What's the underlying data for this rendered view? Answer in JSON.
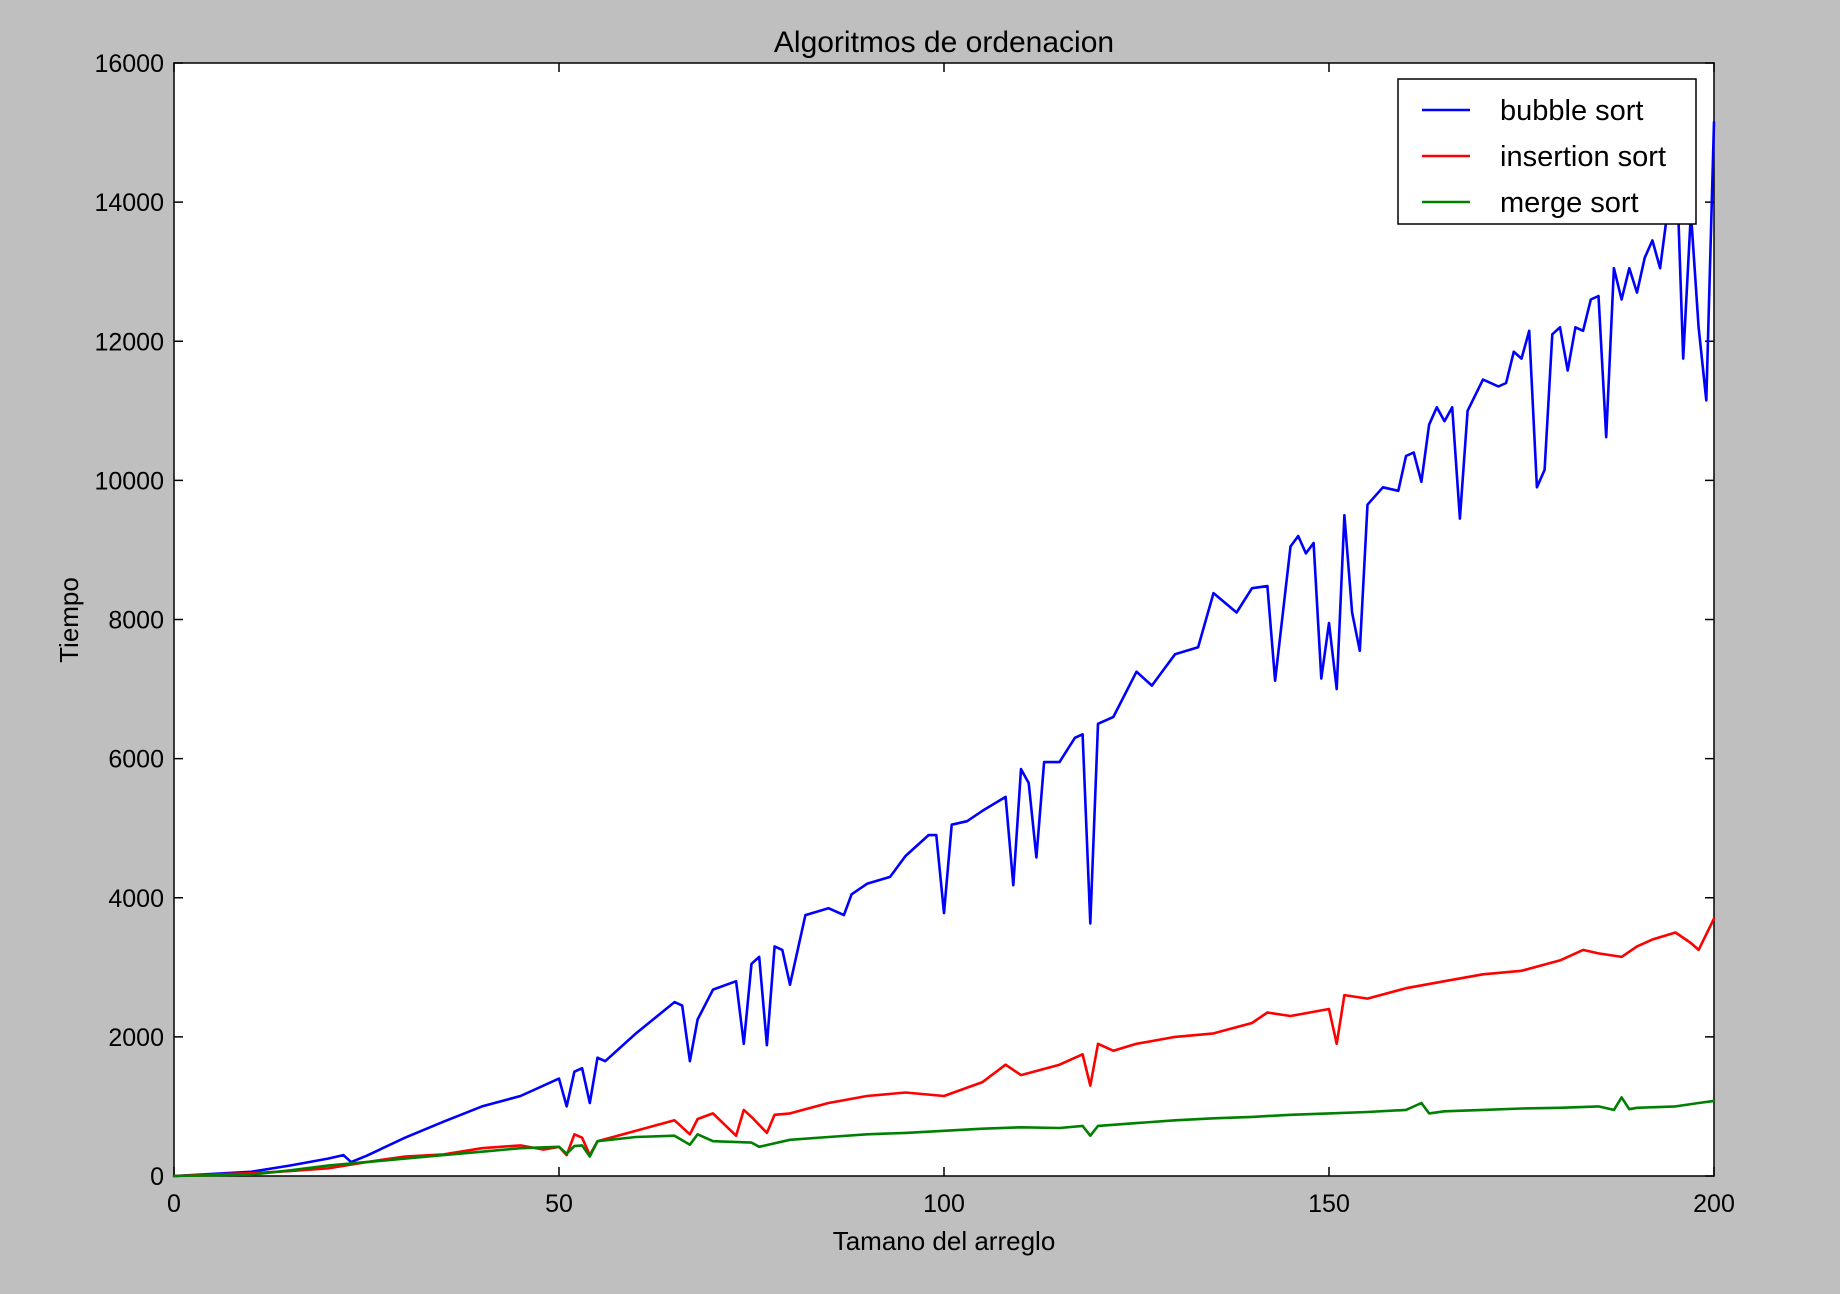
{
  "chart_data": {
    "type": "line",
    "title": "Algoritmos de ordenacion",
    "xlabel": "Tamano del arreglo",
    "ylabel": "Tiempo",
    "xlim": [
      0,
      200
    ],
    "ylim": [
      0,
      16000
    ],
    "xticks": [
      0,
      50,
      100,
      150,
      200
    ],
    "yticks": [
      0,
      2000,
      4000,
      6000,
      8000,
      10000,
      12000,
      14000,
      16000
    ],
    "grid": false,
    "legend_position": "top-right",
    "series": [
      {
        "name": "bubble sort",
        "color": "#0000ff",
        "x": [
          0,
          5,
          10,
          15,
          20,
          22,
          23,
          25,
          30,
          35,
          40,
          45,
          50,
          51,
          52,
          53,
          54,
          55,
          56,
          60,
          65,
          66,
          67,
          68,
          70,
          73,
          74,
          75,
          76,
          77,
          78,
          79,
          80,
          82,
          85,
          87,
          88,
          90,
          93,
          95,
          98,
          99,
          100,
          101,
          103,
          105,
          108,
          109,
          110,
          111,
          112,
          113,
          115,
          117,
          118,
          119,
          120,
          122,
          125,
          127,
          128,
          130,
          133,
          135,
          138,
          140,
          142,
          143,
          145,
          146,
          147,
          148,
          149,
          150,
          151,
          152,
          153,
          154,
          155,
          157,
          159,
          160,
          161,
          162,
          163,
          164,
          165,
          166,
          167,
          168,
          170,
          172,
          173,
          174,
          175,
          176,
          177,
          178,
          179,
          180,
          181,
          182,
          183,
          184,
          185,
          186,
          187,
          188,
          189,
          190,
          191,
          192,
          193,
          194,
          195,
          196,
          197,
          198,
          199,
          200
        ],
        "values": [
          0,
          30,
          60,
          150,
          250,
          300,
          200,
          290,
          550,
          780,
          1000,
          1150,
          1400,
          1000,
          1500,
          1550,
          1050,
          1700,
          1650,
          2050,
          2500,
          2450,
          1650,
          2250,
          2680,
          2800,
          1900,
          3050,
          3150,
          1880,
          3300,
          3250,
          2750,
          3750,
          3850,
          3750,
          4050,
          4200,
          4300,
          4600,
          4900,
          4900,
          3780,
          5050,
          5100,
          5250,
          5450,
          4180,
          5850,
          5650,
          4580,
          5950,
          5950,
          6300,
          6350,
          3630,
          6500,
          6600,
          7250,
          7050,
          7200,
          7500,
          7600,
          8380,
          8100,
          8450,
          8480,
          7120,
          9050,
          9200,
          8950,
          9100,
          7150,
          7950,
          7000,
          9500,
          8100,
          7550,
          9650,
          9900,
          9850,
          10350,
          10400,
          9980,
          10800,
          11050,
          10850,
          11050,
          9450,
          11000,
          11450,
          11350,
          11400,
          11850,
          11750,
          12150,
          9900,
          10150,
          12100,
          12200,
          11580,
          12200,
          12150,
          12600,
          12650,
          10620,
          13050,
          12600,
          13050,
          12700,
          13200,
          13450,
          13050,
          13900,
          15000,
          11750,
          13850,
          12200,
          11150,
          15150
        ]
      },
      {
        "name": "insertion sort",
        "color": "#ff0000",
        "x": [
          0,
          5,
          10,
          15,
          20,
          25,
          30,
          35,
          40,
          45,
          48,
          50,
          51,
          52,
          53,
          54,
          55,
          60,
          65,
          67,
          68,
          70,
          73,
          74,
          75,
          77,
          78,
          80,
          85,
          90,
          95,
          100,
          105,
          108,
          110,
          115,
          118,
          119,
          120,
          122,
          125,
          130,
          135,
          140,
          142,
          145,
          150,
          151,
          152,
          155,
          160,
          165,
          170,
          175,
          180,
          183,
          185,
          188,
          190,
          192,
          195,
          197,
          198,
          200
        ],
        "values": [
          0,
          20,
          40,
          70,
          110,
          200,
          280,
          310,
          400,
          440,
          380,
          420,
          300,
          600,
          550,
          300,
          500,
          650,
          800,
          600,
          820,
          900,
          580,
          950,
          850,
          620,
          880,
          900,
          1050,
          1150,
          1200,
          1150,
          1350,
          1600,
          1450,
          1600,
          1750,
          1300,
          1900,
          1800,
          1900,
          2000,
          2050,
          2200,
          2350,
          2300,
          2400,
          1900,
          2600,
          2550,
          2700,
          2800,
          2900,
          2950,
          3100,
          3250,
          3200,
          3150,
          3300,
          3400,
          3500,
          3350,
          3250,
          3700
        ]
      },
      {
        "name": "merge sort",
        "color": "#008000",
        "x": [
          0,
          10,
          15,
          20,
          25,
          30,
          35,
          40,
          45,
          50,
          51,
          52,
          53,
          54,
          55,
          60,
          65,
          67,
          68,
          70,
          75,
          76,
          80,
          85,
          90,
          95,
          100,
          105,
          110,
          115,
          118,
          119,
          120,
          125,
          130,
          135,
          140,
          145,
          150,
          155,
          160,
          162,
          163,
          165,
          170,
          175,
          180,
          185,
          187,
          188,
          189,
          190,
          195,
          198,
          200
        ],
        "values": [
          0,
          20,
          80,
          150,
          200,
          250,
          300,
          350,
          400,
          420,
          320,
          430,
          440,
          280,
          500,
          560,
          580,
          450,
          600,
          500,
          480,
          420,
          520,
          560,
          600,
          620,
          650,
          680,
          700,
          690,
          720,
          580,
          720,
          760,
          800,
          830,
          850,
          880,
          900,
          920,
          950,
          1050,
          900,
          930,
          950,
          970,
          980,
          1000,
          950,
          1130,
          960,
          980,
          1000,
          1050,
          1080
        ]
      }
    ]
  }
}
